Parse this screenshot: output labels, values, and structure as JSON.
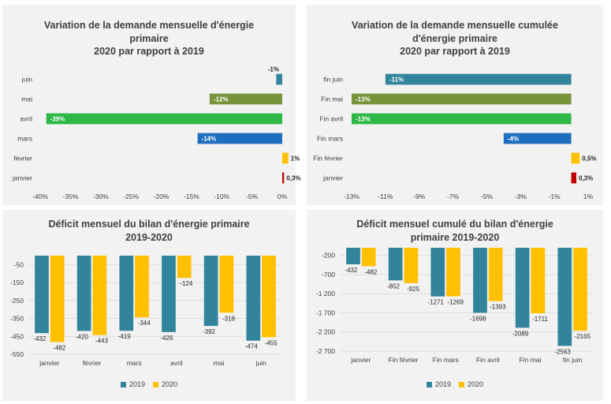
{
  "chart_data": [
    {
      "id": "c1",
      "type": "bar",
      "orientation": "horizontal",
      "title": [
        "Variation de la demande mensuelle d'énergie",
        "primaire",
        "2020 par rapport  à 2019"
      ],
      "categories": [
        "juin",
        "mai",
        "avril",
        "mars",
        "février",
        "janvier"
      ],
      "values": [
        -1,
        -12,
        -39,
        -14,
        1,
        0.3
      ],
      "labels": [
        "-1%",
        "-12%",
        "-39%",
        "-14%",
        "1%",
        "0,3%"
      ],
      "colors": [
        "#31849b",
        "#77933c",
        "#2eb847",
        "#1f6fbf",
        "#ffc000",
        "#c00000"
      ],
      "xlim": [
        -40,
        0
      ],
      "xticks": [
        "-40%",
        "-35%",
        "-30%",
        "-25%",
        "-20%",
        "-15%",
        "-10%",
        "-5%",
        "0%"
      ]
    },
    {
      "id": "c2",
      "type": "bar",
      "orientation": "horizontal",
      "title": [
        "Variation de la demande mensuelle cumulée",
        "d'énergie primaire",
        "2020 par rapport  à 2019"
      ],
      "categories": [
        "fin juin",
        "Fin mai",
        "Fin avril",
        "Fin mars",
        "Fin février",
        "janvier"
      ],
      "values": [
        -11,
        -13,
        -13,
        -4,
        0.5,
        0.3
      ],
      "labels": [
        "-11%",
        "-13%",
        "-13%",
        "-4%",
        "0,5%",
        "0,3%"
      ],
      "colors": [
        "#31849b",
        "#77933c",
        "#2eb847",
        "#1f6fbf",
        "#ffc000",
        "#c00000"
      ],
      "xlim": [
        -13,
        1
      ],
      "xticks": [
        "-13%",
        "-11%",
        "-9%",
        "-7%",
        "-5%",
        "-3%",
        "-1%",
        "1%"
      ]
    },
    {
      "id": "c3",
      "type": "bar",
      "title": [
        "Déficit mensuel du bilan d'énergie primaire",
        "2019-2020"
      ],
      "categories": [
        "janvier",
        "février",
        "mars",
        "avril",
        "mai",
        "juin"
      ],
      "series": [
        {
          "name": "2019",
          "color": "#31849b",
          "values": [
            -432,
            -420,
            -419,
            -426,
            -392,
            -474
          ]
        },
        {
          "name": "2020",
          "color": "#ffc000",
          "values": [
            -482,
            -443,
            -344,
            -124,
            -318,
            -455
          ]
        }
      ],
      "ylim": [
        -550,
        0
      ],
      "yticks": [
        "-50",
        "-150",
        "-250",
        "-350",
        "-450",
        "-550"
      ]
    },
    {
      "id": "c4",
      "type": "bar",
      "title": [
        "Déficit mensuel cumulé du bilan d'énergie",
        "primaire 2019-2020"
      ],
      "categories": [
        "janvier",
        "Fin février",
        "Fin mars",
        "Fin avril",
        "Fin mai",
        "fin juin"
      ],
      "series": [
        {
          "name": "2019",
          "color": "#31849b",
          "values": [
            -432,
            -852,
            -1271,
            -1698,
            -2089,
            -2563
          ]
        },
        {
          "name": "2020",
          "color": "#ffc000",
          "values": [
            -482,
            -925,
            -1269,
            -1393,
            -1711,
            -2165
          ]
        }
      ],
      "ylim": [
        -2700,
        0
      ],
      "yticks": [
        "-200",
        "-700",
        "-1 200",
        "-1 700",
        "-2 200",
        "-2 700"
      ]
    }
  ]
}
